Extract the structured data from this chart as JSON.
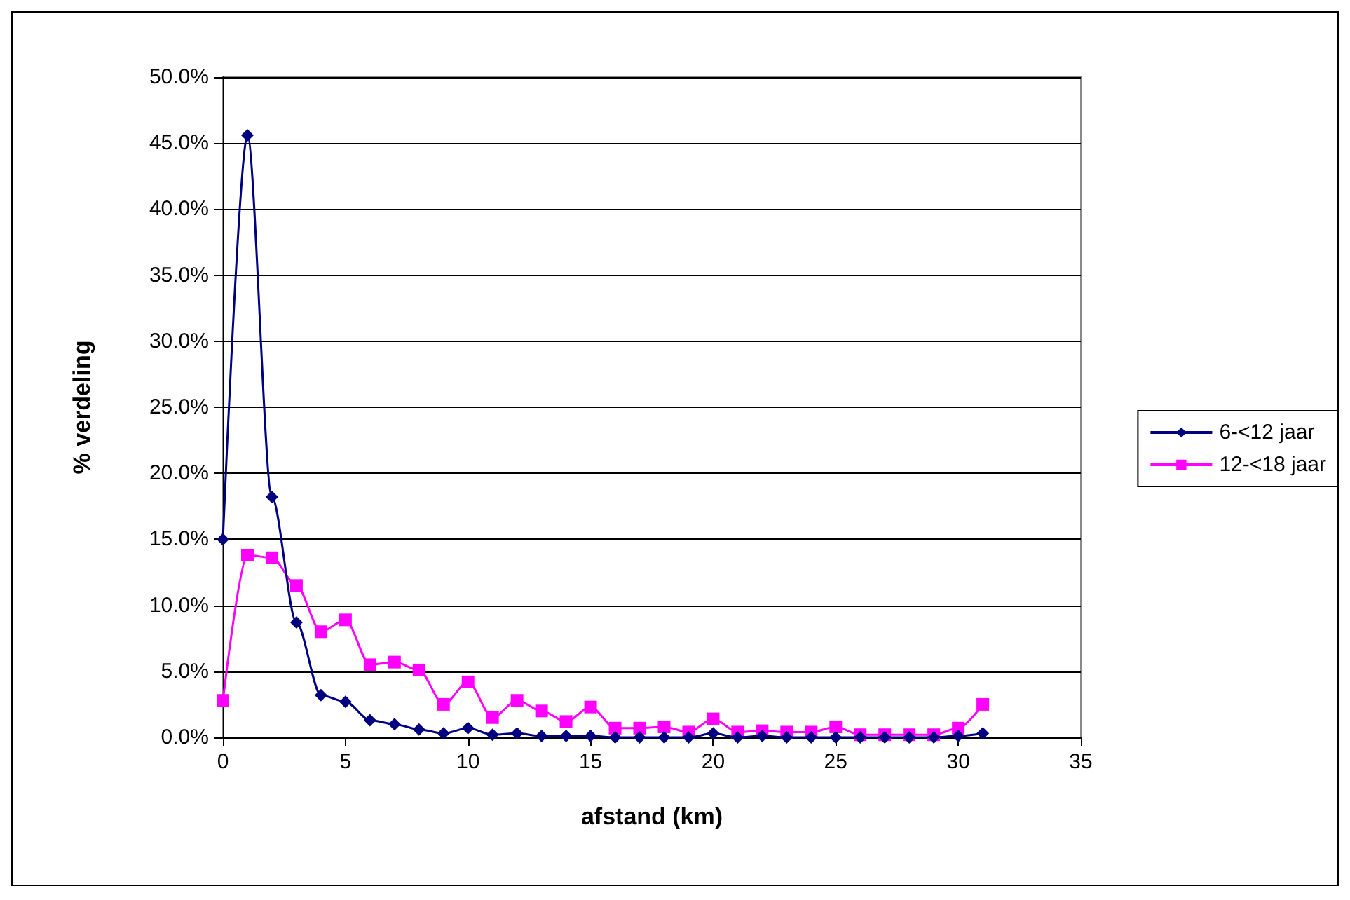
{
  "chart_data": {
    "type": "line",
    "xlabel": "afstand (km)",
    "ylabel": "% verdeling",
    "x": [
      0,
      1,
      2,
      3,
      4,
      5,
      6,
      7,
      8,
      9,
      10,
      11,
      12,
      13,
      14,
      15,
      16,
      17,
      18,
      19,
      20,
      21,
      22,
      23,
      24,
      25,
      26,
      27,
      28,
      29,
      30,
      31
    ],
    "series": [
      {
        "name": "6-<12 jaar",
        "color": "#000080",
        "marker": "diamond",
        "values": [
          15.0,
          45.6,
          18.2,
          8.7,
          3.2,
          2.7,
          1.3,
          1.0,
          0.6,
          0.3,
          0.7,
          0.2,
          0.3,
          0.1,
          0.1,
          0.1,
          0,
          0,
          0,
          0,
          0.3,
          0,
          0.1,
          0,
          0,
          0,
          0,
          0,
          0,
          0,
          0.1,
          0.3
        ]
      },
      {
        "name": "12-<18 jaar",
        "color": "#ff00ff",
        "marker": "square",
        "values": [
          2.8,
          13.8,
          13.6,
          11.5,
          8.0,
          8.9,
          5.5,
          5.7,
          5.1,
          2.5,
          4.2,
          1.5,
          2.8,
          2.0,
          1.2,
          2.3,
          0.7,
          0.7,
          0.8,
          0.4,
          1.4,
          0.4,
          0.5,
          0.4,
          0.4,
          0.8,
          0.2,
          0.2,
          0.2,
          0.2,
          0.7,
          2.5
        ]
      }
    ],
    "xlim": [
      0,
      35
    ],
    "xticks": [
      0,
      5,
      10,
      15,
      20,
      25,
      30,
      35
    ],
    "ylim": [
      0,
      50
    ],
    "yticks": [
      {
        "value": 0,
        "label": "0.0%"
      },
      {
        "value": 5,
        "label": "5.0%"
      },
      {
        "value": 10,
        "label": "10.0%"
      },
      {
        "value": 15,
        "label": "15.0%"
      },
      {
        "value": 20,
        "label": "20.0%"
      },
      {
        "value": 25,
        "label": "25.0%"
      },
      {
        "value": 30,
        "label": "30.0%"
      },
      {
        "value": 35,
        "label": "35.0%"
      },
      {
        "value": 40,
        "label": "40.0%"
      },
      {
        "value": 45,
        "label": "45.0%"
      },
      {
        "value": 50,
        "label": "50.0%"
      }
    ],
    "grid": "y",
    "legend": "right",
    "line_style": "solid"
  }
}
